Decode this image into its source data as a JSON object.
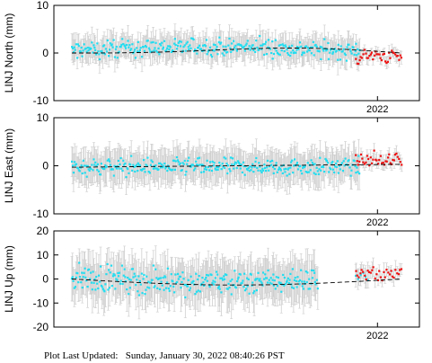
{
  "footer": {
    "label": "Plot Last Updated:",
    "value": "Sunday, January 30, 2022 08:40:26 PST"
  },
  "colors": {
    "normal_points": "#22ddf0",
    "highlight_points": "#ee1111",
    "error_bars": "#cfcfcf",
    "trend_line": "#000000",
    "frame": "#000000"
  },
  "chart_data": [
    {
      "type": "scatter",
      "ylabel": "LINJ North (mm)",
      "ylim": [
        -10,
        10
      ],
      "yticks": [
        -10,
        0,
        10
      ],
      "xlim": [
        2019.3,
        2022.35
      ],
      "x_tick_labels": [
        {
          "x": 2022.0,
          "label": "2022"
        }
      ],
      "trend": {
        "x": [
          2019.45,
          2022.2
        ],
        "y": [
          0.0,
          0.0
        ],
        "style": "dashed",
        "note_shape": "slight hump mid-span"
      },
      "series": [
        {
          "role": "normal",
          "x_range": [
            2019.45,
            2021.85
          ],
          "y_mean": 0.3,
          "y_spread": 1.6,
          "error_bar": 2.5,
          "n": 330
        },
        {
          "role": "highlight",
          "x_range": [
            2021.82,
            2022.2
          ],
          "y_mean": -0.7,
          "y_spread": 1.3,
          "error_bar": 1.2,
          "n": 38
        }
      ],
      "grid": false,
      "legend": "none"
    },
    {
      "type": "scatter",
      "ylabel": "LINJ East (mm)",
      "ylim": [
        -10,
        10
      ],
      "yticks": [
        -10,
        0,
        10
      ],
      "xlim": [
        2019.3,
        2022.35
      ],
      "x_tick_labels": [
        {
          "x": 2022.0,
          "label": "2022"
        }
      ],
      "trend": {
        "x": [
          2019.45,
          2022.2
        ],
        "y": [
          -0.3,
          0.3
        ],
        "style": "dashed"
      },
      "series": [
        {
          "role": "normal",
          "x_range": [
            2019.45,
            2021.85
          ],
          "y_mean": -0.2,
          "y_spread": 1.5,
          "error_bar": 3.2,
          "n": 330
        },
        {
          "role": "highlight",
          "x_range": [
            2021.82,
            2022.2
          ],
          "y_mean": 1.2,
          "y_spread": 1.4,
          "error_bar": 1.3,
          "n": 38
        }
      ],
      "grid": false,
      "legend": "none"
    },
    {
      "type": "scatter",
      "ylabel": "LINJ Up (mm)",
      "ylim": [
        -20,
        20
      ],
      "yticks": [
        -20,
        -10,
        0,
        10,
        20
      ],
      "xlim": [
        2019.3,
        2022.35
      ],
      "x_tick_labels": [
        {
          "x": 2022.0,
          "label": "2022"
        }
      ],
      "trend": {
        "x": [
          2019.45,
          2022.2
        ],
        "y": [
          0.0,
          0.0
        ],
        "style": "dashed",
        "note_shape": "dip mid-span"
      },
      "series": [
        {
          "role": "normal",
          "x_range": [
            2019.45,
            2021.5
          ],
          "y_mean": 1.0,
          "y_spread": 4.5,
          "error_bar": 8.0,
          "n": 300
        },
        {
          "role": "normal",
          "x_range": [
            2021.82,
            2021.92
          ],
          "y_mean": 1.5,
          "y_spread": 3.0,
          "error_bar": 4.0,
          "n": 6
        },
        {
          "role": "highlight",
          "x_range": [
            2021.82,
            2022.2
          ],
          "y_mean": 2.0,
          "y_spread": 3.0,
          "error_bar": 3.0,
          "n": 32
        }
      ],
      "grid": false,
      "legend": "none"
    }
  ]
}
